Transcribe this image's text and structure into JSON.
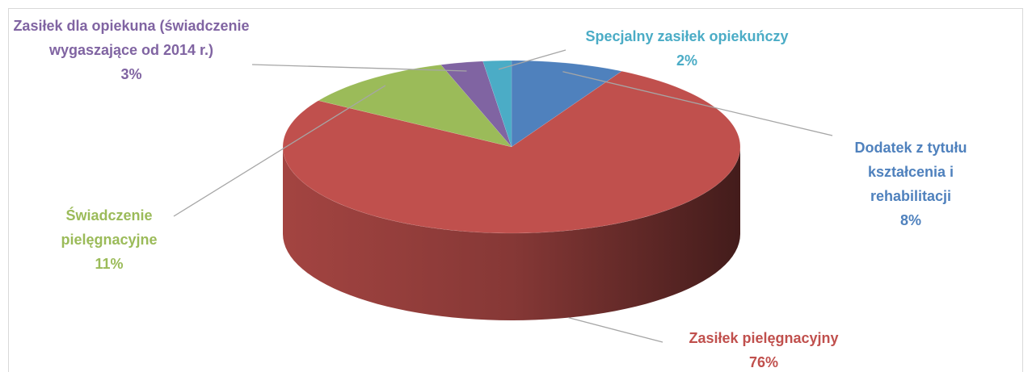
{
  "chart_data": {
    "type": "pie3d",
    "categories": [
      "Dodatek z tytułu kształcenia i rehabilitacji",
      "Zasiłek pielęgnacyjny",
      "Świadczenie pielęgnacyjne",
      "Zasiłek dla opiekuna (świadczenie wygaszające od 2014 r.)",
      "Specjalny zasiłek opiekuńczy"
    ],
    "values": [
      8,
      76,
      11,
      3,
      2
    ],
    "value_labels": [
      "8%",
      "76%",
      "11%",
      "3%",
      "2%"
    ],
    "colors": [
      "#4f81bd",
      "#c0504d",
      "#9bbb59",
      "#8064a2",
      "#4bacc6"
    ]
  }
}
